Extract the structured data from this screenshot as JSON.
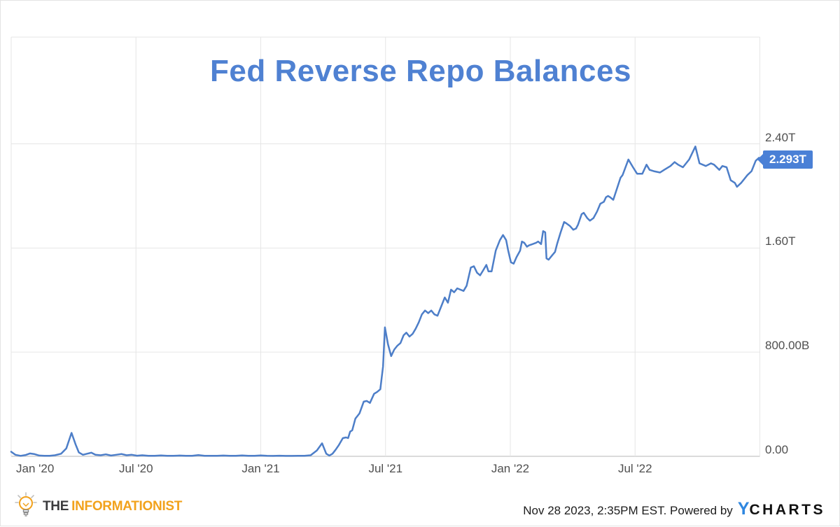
{
  "header": {
    "title": "Fed Reverse Repo Balances"
  },
  "badge": {
    "label": "2.293T"
  },
  "footer": {
    "brand": {
      "the": "THE",
      "name": "INFORMATIONIST"
    },
    "attribution": {
      "timestamp": "Nov 28 2023, 2:35PM EST.",
      "powered_by": "Powered by",
      "logo_y": "Y",
      "logo_charts": "CHARTS"
    }
  },
  "colors": {
    "title": "#4f81d2",
    "line": "#4d7ec8",
    "badge_bg": "#4a80d6",
    "badge_text": "#ffffff",
    "grid": "#e6e6e6",
    "axis_line": "#cfcfcf",
    "tick_text": "#4f4f4f",
    "informationist_orange": "#f2a21c",
    "informationist_dark": "#3b3b3d",
    "ycharts_blue": "#2f87e0",
    "ycharts_dark": "#121212"
  },
  "chart_data": {
    "type": "line",
    "title": "Fed Reverse Repo Balances",
    "x_unit": "months since Jan 2020",
    "y_unit": "trillions USD",
    "xlim": [
      0,
      36
    ],
    "ylim": [
      0,
      3.22
    ],
    "grid": true,
    "legend": "none",
    "axis_side": "right",
    "y_ticks": [
      {
        "label": "2.40T",
        "value": 2.4
      },
      {
        "label": "1.60T",
        "value": 1.6
      },
      {
        "label": "800.00B",
        "value": 0.8
      },
      {
        "label": "0.00",
        "value": 0
      }
    ],
    "x_ticks": [
      {
        "label": "Jan '20",
        "m": 0
      },
      {
        "label": "Jul '20",
        "m": 6
      },
      {
        "label": "Jan '21",
        "m": 12
      },
      {
        "label": "Jul '21",
        "m": 18
      },
      {
        "label": "Jan '22",
        "m": 24
      },
      {
        "label": "Jul '22",
        "m": 30
      }
    ],
    "x_grid_extra": [
      36
    ],
    "last_value_label": "2.293T",
    "series": [
      {
        "name": "Fed Reverse Repo Balances",
        "points": [
          [
            0,
            0.035
          ],
          [
            0.2,
            0.012
          ],
          [
            0.45,
            0.004
          ],
          [
            0.7,
            0.01
          ],
          [
            0.9,
            0.022
          ],
          [
            1.1,
            0.018
          ],
          [
            1.35,
            0.006
          ],
          [
            1.6,
            0.004
          ],
          [
            1.85,
            0.004
          ],
          [
            2.1,
            0.008
          ],
          [
            2.4,
            0.02
          ],
          [
            2.65,
            0.06
          ],
          [
            2.9,
            0.18
          ],
          [
            3.1,
            0.09
          ],
          [
            3.25,
            0.03
          ],
          [
            3.45,
            0.012
          ],
          [
            3.65,
            0.02
          ],
          [
            3.85,
            0.028
          ],
          [
            4.05,
            0.012
          ],
          [
            4.3,
            0.008
          ],
          [
            4.55,
            0.015
          ],
          [
            4.8,
            0.006
          ],
          [
            5.05,
            0.012
          ],
          [
            5.3,
            0.018
          ],
          [
            5.55,
            0.008
          ],
          [
            5.8,
            0.012
          ],
          [
            6.05,
            0.005
          ],
          [
            6.3,
            0.008
          ],
          [
            6.6,
            0.004
          ],
          [
            6.9,
            0.004
          ],
          [
            7.2,
            0.007
          ],
          [
            7.5,
            0.004
          ],
          [
            7.8,
            0.004
          ],
          [
            8.1,
            0.006
          ],
          [
            8.4,
            0.004
          ],
          [
            8.7,
            0.004
          ],
          [
            9.0,
            0.009
          ],
          [
            9.3,
            0.004
          ],
          [
            9.6,
            0.004
          ],
          [
            9.9,
            0.004
          ],
          [
            10.2,
            0.006
          ],
          [
            10.5,
            0.004
          ],
          [
            10.8,
            0.004
          ],
          [
            11.1,
            0.007
          ],
          [
            11.4,
            0.004
          ],
          [
            11.7,
            0.004
          ],
          [
            12.0,
            0.007
          ],
          [
            12.3,
            0.004
          ],
          [
            12.6,
            0.003
          ],
          [
            12.9,
            0.005
          ],
          [
            13.2,
            0.003
          ],
          [
            13.5,
            0.003
          ],
          [
            13.8,
            0.004
          ],
          [
            14.1,
            0.004
          ],
          [
            14.4,
            0.008
          ],
          [
            14.7,
            0.045
          ],
          [
            14.95,
            0.1
          ],
          [
            15.15,
            0.02
          ],
          [
            15.3,
            0.006
          ],
          [
            15.45,
            0.02
          ],
          [
            15.6,
            0.05
          ],
          [
            15.75,
            0.085
          ],
          [
            15.95,
            0.14
          ],
          [
            16.1,
            0.145
          ],
          [
            16.2,
            0.14
          ],
          [
            16.3,
            0.19
          ],
          [
            16.4,
            0.2
          ],
          [
            16.55,
            0.29
          ],
          [
            16.75,
            0.33
          ],
          [
            16.95,
            0.42
          ],
          [
            17.1,
            0.425
          ],
          [
            17.25,
            0.41
          ],
          [
            17.45,
            0.48
          ],
          [
            17.6,
            0.495
          ],
          [
            17.75,
            0.515
          ],
          [
            17.88,
            0.69
          ],
          [
            17.97,
            0.99
          ],
          [
            18.12,
            0.86
          ],
          [
            18.27,
            0.77
          ],
          [
            18.42,
            0.82
          ],
          [
            18.57,
            0.85
          ],
          [
            18.72,
            0.87
          ],
          [
            18.87,
            0.93
          ],
          [
            19.0,
            0.95
          ],
          [
            19.15,
            0.92
          ],
          [
            19.3,
            0.94
          ],
          [
            19.45,
            0.98
          ],
          [
            19.6,
            1.03
          ],
          [
            19.75,
            1.09
          ],
          [
            19.9,
            1.12
          ],
          [
            20.05,
            1.1
          ],
          [
            20.2,
            1.12
          ],
          [
            20.35,
            1.09
          ],
          [
            20.5,
            1.08
          ],
          [
            20.65,
            1.14
          ],
          [
            20.85,
            1.22
          ],
          [
            21.0,
            1.18
          ],
          [
            21.15,
            1.28
          ],
          [
            21.3,
            1.26
          ],
          [
            21.45,
            1.29
          ],
          [
            21.6,
            1.28
          ],
          [
            21.75,
            1.27
          ],
          [
            21.9,
            1.31
          ],
          [
            22.1,
            1.45
          ],
          [
            22.25,
            1.46
          ],
          [
            22.4,
            1.41
          ],
          [
            22.55,
            1.39
          ],
          [
            22.7,
            1.43
          ],
          [
            22.85,
            1.47
          ],
          [
            22.95,
            1.42
          ],
          [
            23.1,
            1.42
          ],
          [
            23.3,
            1.58
          ],
          [
            23.5,
            1.66
          ],
          [
            23.65,
            1.7
          ],
          [
            23.8,
            1.66
          ],
          [
            23.9,
            1.58
          ],
          [
            24.03,
            1.49
          ],
          [
            24.16,
            1.48
          ],
          [
            24.3,
            1.53
          ],
          [
            24.47,
            1.58
          ],
          [
            24.56,
            1.65
          ],
          [
            24.67,
            1.64
          ],
          [
            24.8,
            1.61
          ],
          [
            24.9,
            1.62
          ],
          [
            25.07,
            1.63
          ],
          [
            25.24,
            1.64
          ],
          [
            25.34,
            1.65
          ],
          [
            25.48,
            1.63
          ],
          [
            25.58,
            1.73
          ],
          [
            25.68,
            1.72
          ],
          [
            25.74,
            1.52
          ],
          [
            25.84,
            1.51
          ],
          [
            26.02,
            1.545
          ],
          [
            26.15,
            1.57
          ],
          [
            26.25,
            1.63
          ],
          [
            26.42,
            1.72
          ],
          [
            26.59,
            1.8
          ],
          [
            26.69,
            1.79
          ],
          [
            26.86,
            1.77
          ],
          [
            27.03,
            1.74
          ],
          [
            27.16,
            1.75
          ],
          [
            27.26,
            1.78
          ],
          [
            27.43,
            1.86
          ],
          [
            27.53,
            1.87
          ],
          [
            27.7,
            1.83
          ],
          [
            27.83,
            1.81
          ],
          [
            28.0,
            1.83
          ],
          [
            28.17,
            1.88
          ],
          [
            28.33,
            1.94
          ],
          [
            28.5,
            1.955
          ],
          [
            28.6,
            1.99
          ],
          [
            28.7,
            2.0
          ],
          [
            28.8,
            1.99
          ],
          [
            28.95,
            1.97
          ],
          [
            29.3,
            2.14
          ],
          [
            29.4,
            2.16
          ],
          [
            29.68,
            2.28
          ],
          [
            29.9,
            2.22
          ],
          [
            30.1,
            2.17
          ],
          [
            30.35,
            2.17
          ],
          [
            30.55,
            2.24
          ],
          [
            30.7,
            2.2
          ],
          [
            30.9,
            2.19
          ],
          [
            31.2,
            2.18
          ],
          [
            31.4,
            2.2
          ],
          [
            31.7,
            2.23
          ],
          [
            31.9,
            2.26
          ],
          [
            32.07,
            2.24
          ],
          [
            32.3,
            2.22
          ],
          [
            32.6,
            2.28
          ],
          [
            32.9,
            2.38
          ],
          [
            33.1,
            2.25
          ],
          [
            33.4,
            2.23
          ],
          [
            33.65,
            2.25
          ],
          [
            33.8,
            2.24
          ],
          [
            34.05,
            2.2
          ],
          [
            34.2,
            2.23
          ],
          [
            34.4,
            2.22
          ],
          [
            34.6,
            2.12
          ],
          [
            34.8,
            2.1
          ],
          [
            34.9,
            2.07
          ],
          [
            35.1,
            2.1
          ],
          [
            35.4,
            2.16
          ],
          [
            35.6,
            2.19
          ],
          [
            35.8,
            2.27
          ],
          [
            35.96,
            2.293
          ]
        ]
      }
    ]
  }
}
